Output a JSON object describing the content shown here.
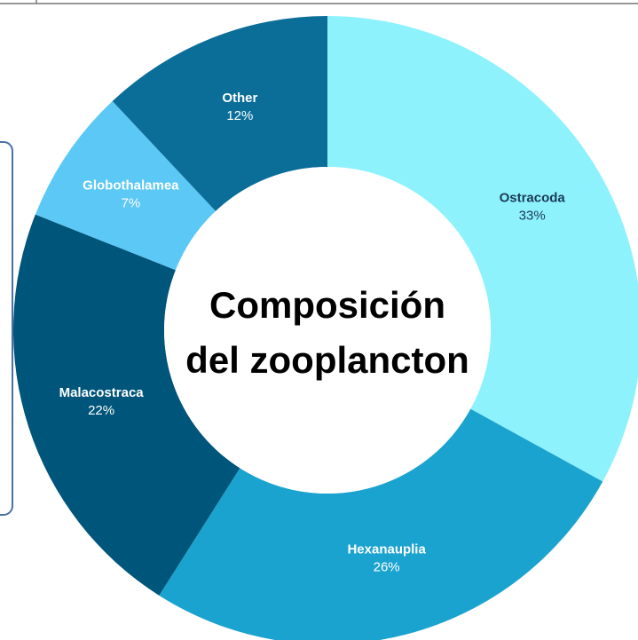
{
  "chart_data": {
    "type": "pie",
    "title": "Composición del zooplancton",
    "categories": [
      "Ostracoda",
      "Hexanauplia",
      "Malacostraca",
      "Globothalamea",
      "Other"
    ],
    "values": [
      33,
      26,
      22,
      7,
      12
    ],
    "value_labels": [
      "33%",
      "26%",
      "22%",
      "7%",
      "12%"
    ],
    "colors": [
      "#8ef2fd",
      "#1ba3cf",
      "#00557a",
      "#5cc8f5",
      "#0b6e99"
    ]
  }
}
